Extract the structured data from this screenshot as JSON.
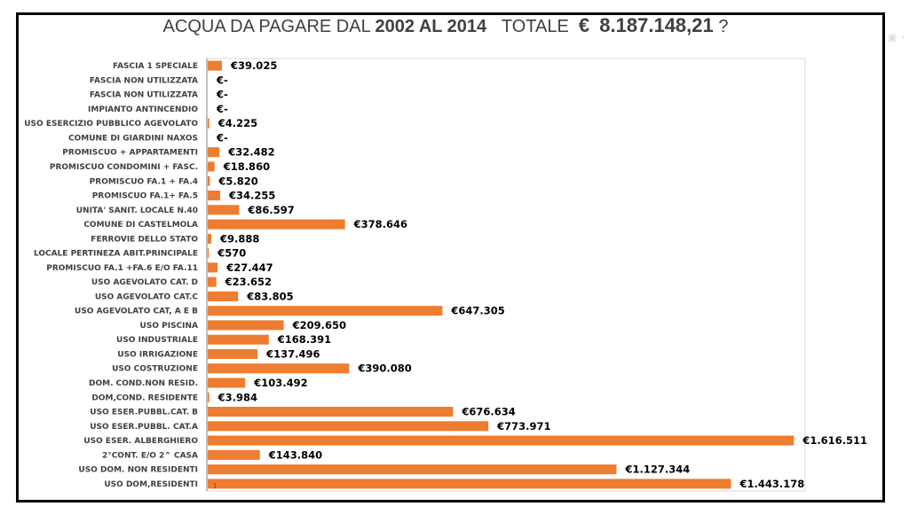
{
  "title": {
    "prefix": "ACQUA DA PAGARE DAL ",
    "years": "2002 AL 2014",
    "totale_label": "TOTALE",
    "euro": "€",
    "amount": "8.187.148,21",
    "suffix": "?"
  },
  "chart_data": {
    "type": "bar",
    "orientation": "horizontal",
    "title": "ACQUA DA PAGARE DAL 2002 AL 2014 TOTALE € 8.187.148,21 ?",
    "xlabel": "",
    "ylabel": "",
    "xlim": [
      0,
      1650000
    ],
    "bar_color": "#ed7d31",
    "axis_tick_label": "1",
    "categories": [
      "FASCIA 1 SPECIALE",
      "FASCIA NON UTILIZZATA",
      "FASCIA NON UTILIZZATA",
      "IMPIANTO ANTINCENDIO",
      "USO ESERCIZIO PUBBLICO AGEVOLATO",
      "COMUNE DI GIARDINI NAXOS",
      "PROMISCUO + APPARTAMENTI",
      "PROMISCUO CONDOMINI + FASC.",
      "PROMISCUO FA.1 + FA.4",
      "PROMISCUO FA.1+ FA.5",
      "UNITA' SANIT. LOCALE N.40",
      "COMUNE DI CASTELMOLA",
      "FERROVIE DELLO STATO",
      "LOCALE PERTINEZA ABIT.PRINCIPALE",
      "PROMISCUO FA.1 +FA.6 E/O FA.11",
      "USO AGEVOLATO CAT. D",
      "USO AGEVOLATO CAT.C",
      "USO AGEVOLATO CAT, A E B",
      "USO PISCINA",
      "USO INDUSTRIALE",
      "USO IRRIGAZIONE",
      "USO COSTRUZIONE",
      "DOM. COND.NON RESID.",
      "DOM,COND. RESIDENTE",
      "USO ESER.PUBBL.CAT. B",
      "USO ESER.PUBBL. CAT.A",
      "USO ESER. ALBERGHIERO",
      "2°CONT. E/O 2^ CASA",
      "USO DOM. NON RESIDENTI",
      "USO DOM,RESIDENTI"
    ],
    "values": [
      39025,
      0,
      0,
      0,
      4225,
      0,
      32482,
      18860,
      5820,
      34255,
      86597,
      378646,
      9888,
      570,
      27447,
      23652,
      83805,
      647305,
      209650,
      168391,
      137496,
      390080,
      103492,
      3984,
      676634,
      773971,
      1616511,
      143840,
      1127344,
      1443178
    ],
    "data_labels": [
      "€39.025",
      "€-",
      "€-",
      "€-",
      "€4.225",
      "€-",
      "€32.482",
      "€18.860",
      "€5.820",
      "€34.255",
      "€86.597",
      "€378.646",
      "€9.888",
      "€570",
      "€27.447",
      "€23.652",
      "€83.805",
      "€647.305",
      "€209.650",
      "€168.391",
      "€137.496",
      "€390.080",
      "€103.492",
      "€3.984",
      "€676.634",
      "€773.971",
      "€1.616.511",
      "€143.840",
      "€1.127.344",
      "€1.443.178"
    ]
  }
}
